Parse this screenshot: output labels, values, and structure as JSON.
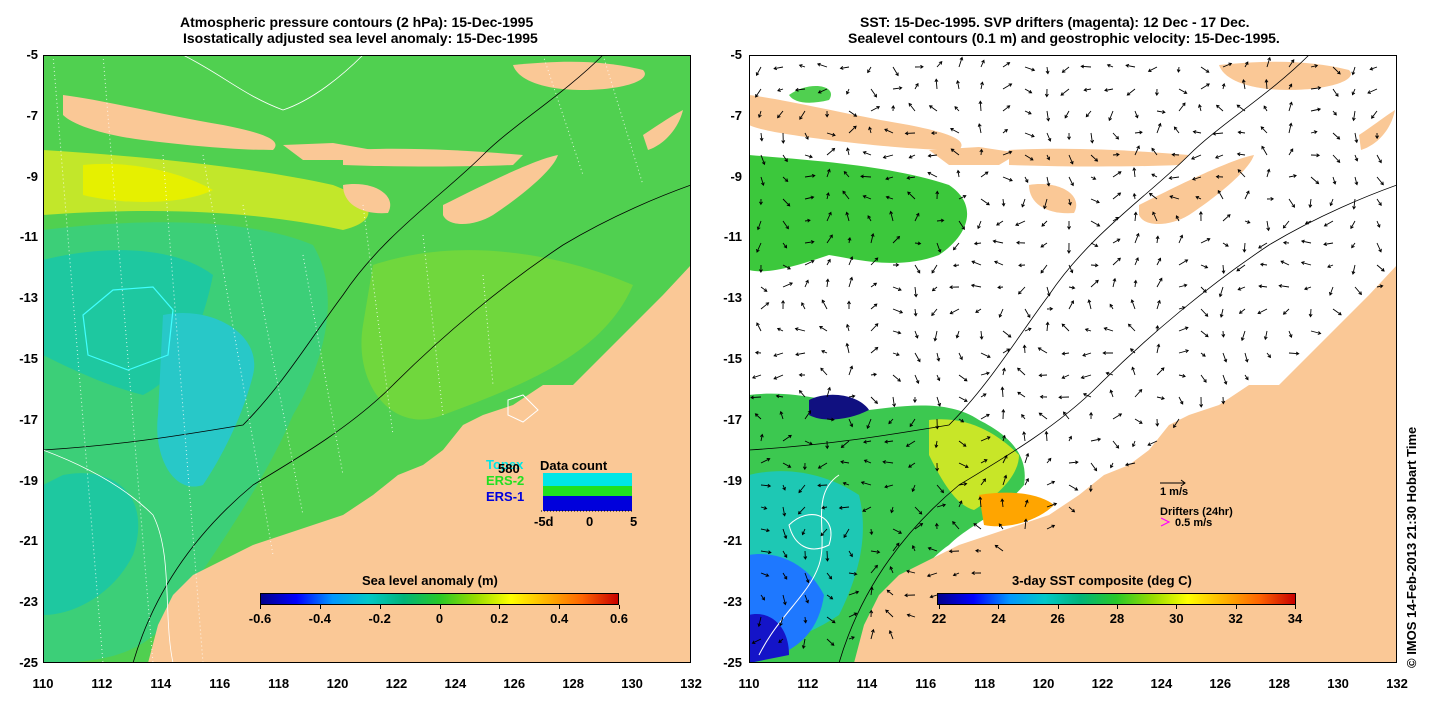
{
  "left": {
    "title_line1": "Atmospheric pressure contours (2 hPa): 15-Dec-1995",
    "title_line2": "Isostatically adjusted sea level anomaly: 15-Dec-1995",
    "colorbar": {
      "title": "Sea level anomaly (m)",
      "ticks": [
        "-0.6",
        "-0.4",
        "-0.2",
        "0",
        "0.2",
        "0.4",
        "0.6"
      ],
      "colors": [
        "#00008c",
        "#0000ff",
        "#0096ff",
        "#00c8c8",
        "#00b478",
        "#28c828",
        "#96dc00",
        "#ffff00",
        "#ffb400",
        "#ff6400",
        "#c80000"
      ]
    },
    "data_count": {
      "title": "Data count",
      "labels": [
        "Topex",
        "ERS-2",
        "ERS-1"
      ],
      "label_colors": [
        "#00e6e6",
        "#20e020",
        "#0000dc"
      ],
      "count": "580",
      "axis": [
        "-5d",
        "0",
        "5"
      ]
    }
  },
  "right": {
    "title_line1": "SST: 15-Dec-1995. SVP drifters (magenta): 12 Dec - 17 Dec.",
    "title_line2": "Sealevel contours (0.1 m) and geostrophic velocity: 15-Dec-1995.",
    "colorbar": {
      "title": "3-day SST composite (deg C)",
      "ticks": [
        "22",
        "24",
        "26",
        "28",
        "30",
        "32",
        "34"
      ],
      "colors": [
        "#00008c",
        "#0000ff",
        "#0096ff",
        "#00c8c8",
        "#00b478",
        "#28c828",
        "#96dc00",
        "#ffff00",
        "#ffb400",
        "#ff6400",
        "#c80000"
      ]
    },
    "velocity_scale": "1 m/s",
    "drifters_label": "Drifters (24hr)",
    "drifters_scale": "0.5 m/s"
  },
  "axes": {
    "y_ticks": [
      "-5",
      "-7",
      "-9",
      "-11",
      "-13",
      "-15",
      "-17",
      "-19",
      "-21",
      "-23",
      "-25"
    ],
    "x_ticks": [
      "110",
      "112",
      "114",
      "116",
      "118",
      "120",
      "122",
      "124",
      "126",
      "128",
      "130",
      "132"
    ]
  },
  "copyright": "© IMOS 14-Feb-2013 21:30 Hobart Time",
  "colors": {
    "land": "#fac896",
    "ocean_green": "#50d050",
    "ocean_light": "#96dc28",
    "ocean_yellow": "#e6f000",
    "ocean_teal": "#1ec8a0",
    "ocean_cyan": "#28c8c8",
    "sst_blue": "#1e78ff",
    "sst_deep": "#1414c8"
  }
}
